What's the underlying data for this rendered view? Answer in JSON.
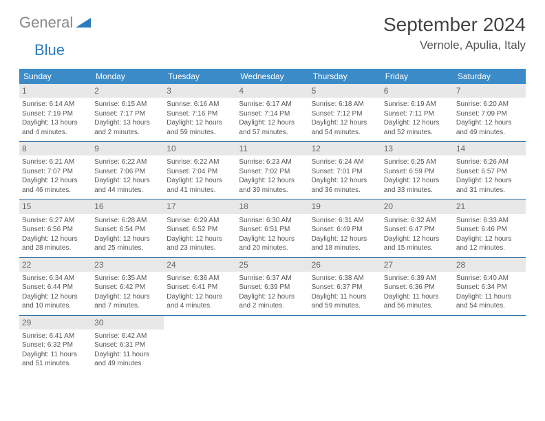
{
  "brand": {
    "gray": "General",
    "blue": "Blue"
  },
  "title": "September 2024",
  "location": "Vernole, Apulia, Italy",
  "colors": {
    "header_bg": "#3b8bc9",
    "header_text": "#ffffff",
    "daynum_bg": "#e8e8e8",
    "week_sep": "#2a6aa0",
    "body_text": "#555555",
    "logo_gray": "#888888",
    "logo_blue": "#2a7bbf"
  },
  "weekdays": [
    "Sunday",
    "Monday",
    "Tuesday",
    "Wednesday",
    "Thursday",
    "Friday",
    "Saturday"
  ],
  "weeks": [
    [
      {
        "n": "1",
        "sr": "Sunrise: 6:14 AM",
        "ss": "Sunset: 7:19 PM",
        "d1": "Daylight: 13 hours",
        "d2": "and 4 minutes."
      },
      {
        "n": "2",
        "sr": "Sunrise: 6:15 AM",
        "ss": "Sunset: 7:17 PM",
        "d1": "Daylight: 13 hours",
        "d2": "and 2 minutes."
      },
      {
        "n": "3",
        "sr": "Sunrise: 6:16 AM",
        "ss": "Sunset: 7:16 PM",
        "d1": "Daylight: 12 hours",
        "d2": "and 59 minutes."
      },
      {
        "n": "4",
        "sr": "Sunrise: 6:17 AM",
        "ss": "Sunset: 7:14 PM",
        "d1": "Daylight: 12 hours",
        "d2": "and 57 minutes."
      },
      {
        "n": "5",
        "sr": "Sunrise: 6:18 AM",
        "ss": "Sunset: 7:12 PM",
        "d1": "Daylight: 12 hours",
        "d2": "and 54 minutes."
      },
      {
        "n": "6",
        "sr": "Sunrise: 6:19 AM",
        "ss": "Sunset: 7:11 PM",
        "d1": "Daylight: 12 hours",
        "d2": "and 52 minutes."
      },
      {
        "n": "7",
        "sr": "Sunrise: 6:20 AM",
        "ss": "Sunset: 7:09 PM",
        "d1": "Daylight: 12 hours",
        "d2": "and 49 minutes."
      }
    ],
    [
      {
        "n": "8",
        "sr": "Sunrise: 6:21 AM",
        "ss": "Sunset: 7:07 PM",
        "d1": "Daylight: 12 hours",
        "d2": "and 46 minutes."
      },
      {
        "n": "9",
        "sr": "Sunrise: 6:22 AM",
        "ss": "Sunset: 7:06 PM",
        "d1": "Daylight: 12 hours",
        "d2": "and 44 minutes."
      },
      {
        "n": "10",
        "sr": "Sunrise: 6:22 AM",
        "ss": "Sunset: 7:04 PM",
        "d1": "Daylight: 12 hours",
        "d2": "and 41 minutes."
      },
      {
        "n": "11",
        "sr": "Sunrise: 6:23 AM",
        "ss": "Sunset: 7:02 PM",
        "d1": "Daylight: 12 hours",
        "d2": "and 39 minutes."
      },
      {
        "n": "12",
        "sr": "Sunrise: 6:24 AM",
        "ss": "Sunset: 7:01 PM",
        "d1": "Daylight: 12 hours",
        "d2": "and 36 minutes."
      },
      {
        "n": "13",
        "sr": "Sunrise: 6:25 AM",
        "ss": "Sunset: 6:59 PM",
        "d1": "Daylight: 12 hours",
        "d2": "and 33 minutes."
      },
      {
        "n": "14",
        "sr": "Sunrise: 6:26 AM",
        "ss": "Sunset: 6:57 PM",
        "d1": "Daylight: 12 hours",
        "d2": "and 31 minutes."
      }
    ],
    [
      {
        "n": "15",
        "sr": "Sunrise: 6:27 AM",
        "ss": "Sunset: 6:56 PM",
        "d1": "Daylight: 12 hours",
        "d2": "and 28 minutes."
      },
      {
        "n": "16",
        "sr": "Sunrise: 6:28 AM",
        "ss": "Sunset: 6:54 PM",
        "d1": "Daylight: 12 hours",
        "d2": "and 25 minutes."
      },
      {
        "n": "17",
        "sr": "Sunrise: 6:29 AM",
        "ss": "Sunset: 6:52 PM",
        "d1": "Daylight: 12 hours",
        "d2": "and 23 minutes."
      },
      {
        "n": "18",
        "sr": "Sunrise: 6:30 AM",
        "ss": "Sunset: 6:51 PM",
        "d1": "Daylight: 12 hours",
        "d2": "and 20 minutes."
      },
      {
        "n": "19",
        "sr": "Sunrise: 6:31 AM",
        "ss": "Sunset: 6:49 PM",
        "d1": "Daylight: 12 hours",
        "d2": "and 18 minutes."
      },
      {
        "n": "20",
        "sr": "Sunrise: 6:32 AM",
        "ss": "Sunset: 6:47 PM",
        "d1": "Daylight: 12 hours",
        "d2": "and 15 minutes."
      },
      {
        "n": "21",
        "sr": "Sunrise: 6:33 AM",
        "ss": "Sunset: 6:46 PM",
        "d1": "Daylight: 12 hours",
        "d2": "and 12 minutes."
      }
    ],
    [
      {
        "n": "22",
        "sr": "Sunrise: 6:34 AM",
        "ss": "Sunset: 6:44 PM",
        "d1": "Daylight: 12 hours",
        "d2": "and 10 minutes."
      },
      {
        "n": "23",
        "sr": "Sunrise: 6:35 AM",
        "ss": "Sunset: 6:42 PM",
        "d1": "Daylight: 12 hours",
        "d2": "and 7 minutes."
      },
      {
        "n": "24",
        "sr": "Sunrise: 6:36 AM",
        "ss": "Sunset: 6:41 PM",
        "d1": "Daylight: 12 hours",
        "d2": "and 4 minutes."
      },
      {
        "n": "25",
        "sr": "Sunrise: 6:37 AM",
        "ss": "Sunset: 6:39 PM",
        "d1": "Daylight: 12 hours",
        "d2": "and 2 minutes."
      },
      {
        "n": "26",
        "sr": "Sunrise: 6:38 AM",
        "ss": "Sunset: 6:37 PM",
        "d1": "Daylight: 11 hours",
        "d2": "and 59 minutes."
      },
      {
        "n": "27",
        "sr": "Sunrise: 6:39 AM",
        "ss": "Sunset: 6:36 PM",
        "d1": "Daylight: 11 hours",
        "d2": "and 56 minutes."
      },
      {
        "n": "28",
        "sr": "Sunrise: 6:40 AM",
        "ss": "Sunset: 6:34 PM",
        "d1": "Daylight: 11 hours",
        "d2": "and 54 minutes."
      }
    ],
    [
      {
        "n": "29",
        "sr": "Sunrise: 6:41 AM",
        "ss": "Sunset: 6:32 PM",
        "d1": "Daylight: 11 hours",
        "d2": "and 51 minutes."
      },
      {
        "n": "30",
        "sr": "Sunrise: 6:42 AM",
        "ss": "Sunset: 6:31 PM",
        "d1": "Daylight: 11 hours",
        "d2": "and 49 minutes."
      },
      null,
      null,
      null,
      null,
      null
    ]
  ]
}
